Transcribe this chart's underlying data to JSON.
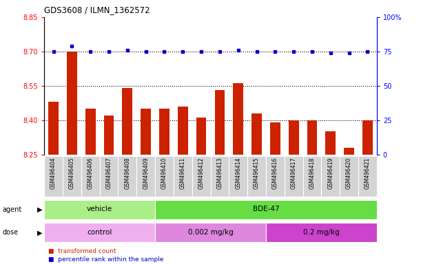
{
  "title": "GDS3608 / ILMN_1362572",
  "samples": [
    "GSM496404",
    "GSM496405",
    "GSM496406",
    "GSM496407",
    "GSM496408",
    "GSM496409",
    "GSM496410",
    "GSM496411",
    "GSM496412",
    "GSM496413",
    "GSM496414",
    "GSM496415",
    "GSM496416",
    "GSM496417",
    "GSM496418",
    "GSM496419",
    "GSM496420",
    "GSM496421"
  ],
  "red_values": [
    8.48,
    8.7,
    8.45,
    8.42,
    8.54,
    8.45,
    8.45,
    8.46,
    8.41,
    8.53,
    8.56,
    8.43,
    8.39,
    8.4,
    8.4,
    8.35,
    8.28,
    8.4
  ],
  "blue_values": [
    75,
    79,
    75,
    75,
    76,
    75,
    75,
    75,
    75,
    75,
    76,
    75,
    75,
    75,
    75,
    74,
    74,
    75
  ],
  "ymin": 8.25,
  "ymax": 8.85,
  "y_ticks": [
    8.25,
    8.4,
    8.55,
    8.7,
    8.85
  ],
  "y2min": 0,
  "y2max": 100,
  "y2_ticks": [
    0,
    25,
    50,
    75,
    100
  ],
  "y2_tick_labels": [
    "0",
    "25",
    "50",
    "75",
    "100%"
  ],
  "dotted_lines": [
    8.4,
    8.55,
    8.7
  ],
  "bar_color": "#cc2200",
  "dot_color": "#0000cc",
  "agent_groups": [
    {
      "label": "vehicle",
      "start": 0,
      "end": 6,
      "color": "#aaee88"
    },
    {
      "label": "BDE-47",
      "start": 6,
      "end": 18,
      "color": "#66dd44"
    }
  ],
  "dose_colors": [
    "#f0b0f0",
    "#dd88dd",
    "#cc44cc"
  ],
  "dose_groups": [
    {
      "label": "control",
      "start": 0,
      "end": 6
    },
    {
      "label": "0.002 mg/kg",
      "start": 6,
      "end": 12
    },
    {
      "label": "0.2 mg/kg",
      "start": 12,
      "end": 18
    }
  ],
  "legend_items": [
    {
      "label": "transformed count",
      "color": "#cc2200"
    },
    {
      "label": "percentile rank within the sample",
      "color": "#0000cc"
    }
  ],
  "bg_color": "#ffffff"
}
